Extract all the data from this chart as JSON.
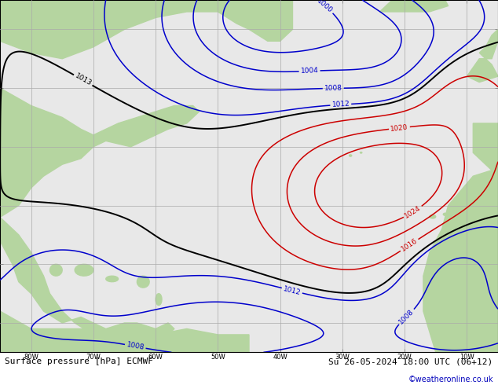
{
  "title_bottom": "Surface pressure [hPa] ECMWF",
  "date_str": "Su 26-05-2024 18:00 UTC (06+12)",
  "copyright": "©weatheronline.co.uk",
  "bg_land": "#b5d5a0",
  "bg_sea": "#e8e8e8",
  "grid_color": "#aaaaaa",
  "contour_colors": {
    "low_1000": "#0000cc",
    "low_1004": "#0000cc",
    "low_1008": "#0000cc",
    "low_1012": "#0000cc",
    "mid_1013": "#000000",
    "high_1016": "#cc0000",
    "high_1020": "#cc0000",
    "high_1024": "#cc0000"
  },
  "bottom_text_color": "#000000",
  "copyright_color": "#0000bb",
  "lon_min": -85,
  "lon_max": -5,
  "lat_min": 5,
  "lat_max": 65,
  "grid_lons": [
    -80,
    -70,
    -60,
    -50,
    -40,
    -30,
    -20,
    -10
  ],
  "grid_lats": [
    10,
    20,
    30,
    40,
    50,
    60
  ],
  "figsize": [
    6.34,
    4.9
  ],
  "dpi": 100
}
